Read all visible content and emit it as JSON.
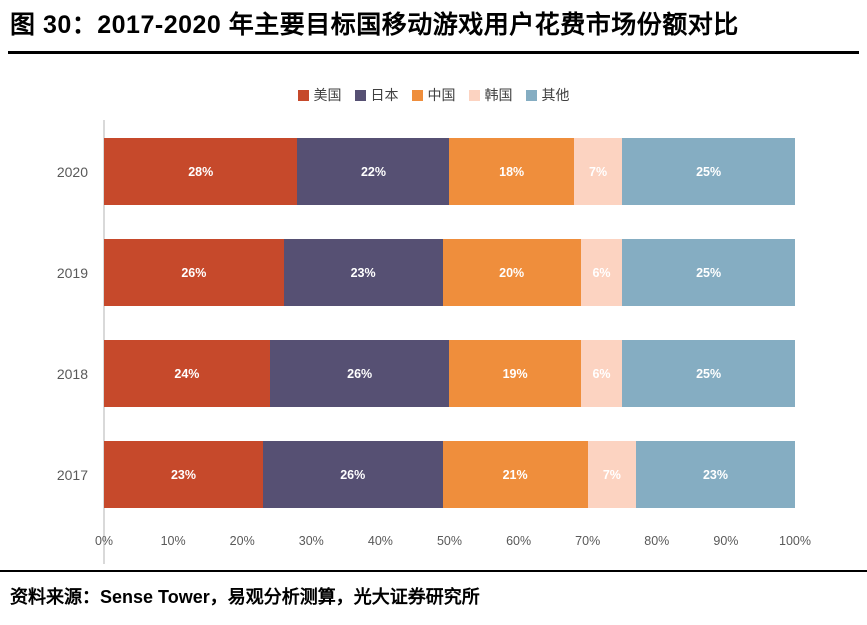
{
  "figure": {
    "title": "图 30：2017-2020 年主要目标国移动游戏用户花费市场份额对比",
    "source": "资料来源：Sense Tower，易观分析测算，光大证券研究所"
  },
  "chart_data": {
    "type": "bar",
    "orientation": "horizontal",
    "stacked": true,
    "unit": "%",
    "title": "2017-2020 年主要目标国移动游戏用户花费市场份额对比",
    "categories": [
      "2020",
      "2019",
      "2018",
      "2017"
    ],
    "series": [
      {
        "name": "美国",
        "color": "#C6492B",
        "values": [
          28,
          26,
          24,
          23
        ]
      },
      {
        "name": "日本",
        "color": "#565073",
        "values": [
          22,
          23,
          26,
          26
        ]
      },
      {
        "name": "中国",
        "color": "#EF8E3C",
        "values": [
          18,
          20,
          19,
          21
        ]
      },
      {
        "name": "韩国",
        "color": "#FCD3C1",
        "values": [
          7,
          6,
          6,
          7
        ]
      },
      {
        "name": "其他",
        "color": "#85ADC2",
        "values": [
          25,
          25,
          25,
          23
        ]
      }
    ],
    "x_ticks": [
      "0%",
      "10%",
      "20%",
      "30%",
      "40%",
      "50%",
      "60%",
      "70%",
      "80%",
      "90%",
      "100%"
    ],
    "xlim": [
      0,
      100
    ],
    "legend_position": "top",
    "gridlines": false,
    "data_labels": true,
    "data_label_color": "#FFFFFF",
    "axis_text_color": "#595959",
    "axis_line_color": "#D9D9D9"
  }
}
